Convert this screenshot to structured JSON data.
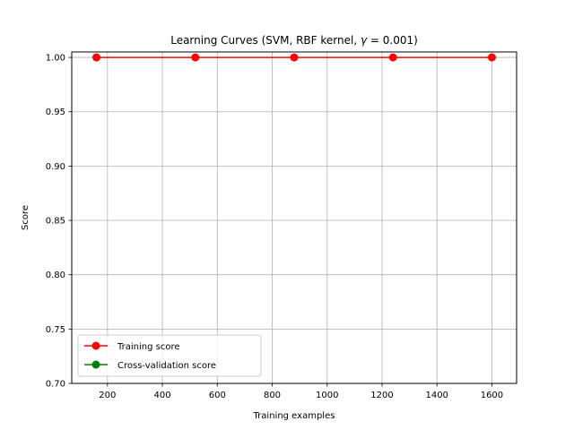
{
  "chart_data": {
    "type": "line",
    "title": "Learning Curves (SVM, RBF kernel, γ = 0.001)",
    "title_parts": {
      "prefix": "Learning Curves (SVM, RBF kernel, ",
      "symbol": "γ",
      "suffix": " = 0.001)"
    },
    "xlabel": "Training examples",
    "ylabel": "Score",
    "xlim": [
      70,
      1690
    ],
    "ylim": [
      0.7,
      1.005
    ],
    "xticks": [
      200,
      400,
      600,
      800,
      1000,
      1200,
      1400,
      1600
    ],
    "yticks": [
      0.7,
      0.75,
      0.8,
      0.85,
      0.9,
      0.95,
      1.0
    ],
    "ytick_labels": [
      "0.70",
      "0.75",
      "0.80",
      "0.85",
      "0.90",
      "0.95",
      "1.00"
    ],
    "grid": true,
    "legend_position": "lower-left",
    "x": [
      160,
      520,
      880,
      1240,
      1600
    ],
    "series": [
      {
        "name": "Training score",
        "color": "#ff0000",
        "marker": "circle",
        "values": [
          1.0,
          1.0,
          1.0,
          1.0,
          1.0
        ]
      },
      {
        "name": "Cross-validation score",
        "color": "#008000",
        "marker": "circle",
        "values": [
          null,
          null,
          null,
          null,
          null
        ]
      }
    ]
  }
}
